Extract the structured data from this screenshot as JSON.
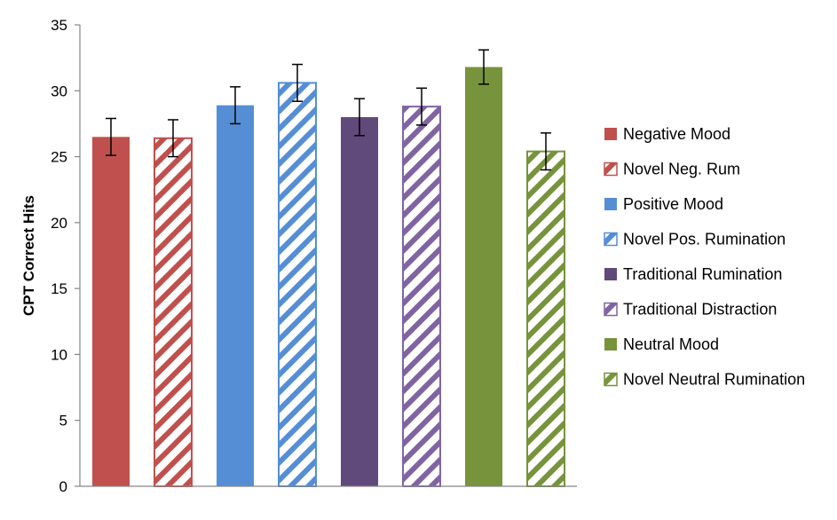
{
  "chart_data": {
    "type": "bar",
    "title": "",
    "xlabel": "",
    "ylabel": "CPT Correct Hits",
    "ylim": [
      0,
      35
    ],
    "yticks": [
      0,
      5,
      10,
      15,
      20,
      25,
      30,
      35
    ],
    "grid": false,
    "legend_position": "right",
    "series": [
      {
        "name": "Negative Mood",
        "value": 26.5,
        "error": 1.4,
        "color": "#c0504d",
        "pattern": "solid"
      },
      {
        "name": "Novel Neg. Rum",
        "value": 26.4,
        "error": 1.4,
        "color": "#c0504d",
        "pattern": "hatched"
      },
      {
        "name": "Positive Mood",
        "value": 28.9,
        "error": 1.4,
        "color": "#558ed5",
        "pattern": "solid"
      },
      {
        "name": "Novel Pos. Rumination",
        "value": 30.6,
        "error": 1.4,
        "color": "#558ed5",
        "pattern": "hatched"
      },
      {
        "name": "Traditional Rumination",
        "value": 28.0,
        "error": 1.4,
        "color": "#604a7b",
        "pattern": "solid"
      },
      {
        "name": "Traditional Distraction",
        "value": 28.8,
        "error": 1.4,
        "color": "#8064a2",
        "pattern": "hatched"
      },
      {
        "name": "Neutral Mood",
        "value": 31.8,
        "error": 1.3,
        "color": "#77933c",
        "pattern": "solid"
      },
      {
        "name": "Novel Neutral Rumination",
        "value": 25.4,
        "error": 1.4,
        "color": "#77933c",
        "pattern": "hatched"
      }
    ]
  }
}
